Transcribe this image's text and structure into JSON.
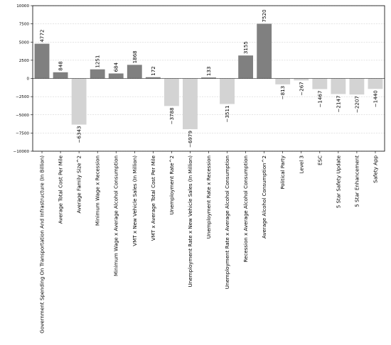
{
  "chart_data": {
    "type": "bar",
    "title": "",
    "xlabel": "",
    "ylabel": "",
    "ylim": [
      -10000,
      10000
    ],
    "yticks": [
      10000,
      7500,
      5000,
      2500,
      0,
      -2500,
      -5000,
      -7500,
      -10000
    ],
    "ytick_labels": [
      "10000",
      "7500",
      "5000",
      "2500",
      "0",
      "−2500",
      "−5000",
      "−7500",
      "−10000"
    ],
    "grid": "horizontal",
    "categories": [
      "Government Spending On Transportation And Infrastructure (In Billion)",
      "Average Total Cost Per Mile",
      "Average Family Size^2",
      "Minimum Wage x Recession",
      "Minimum Wage x Average Alcohol Consumption",
      "VMT x New Vehicle Sales (In Million)",
      "VMT x Average Total Cost Per Mile",
      "Unemployment Rate^2",
      "Unemployment Rate x New Vehicle Sales (In Million)",
      "Unemployment Rate x Recession",
      "Unemployment Rate x Average Alcohol Consumption",
      "Recession x Average Alcohol Consumption",
      "Average Alcohol Consumption^2",
      "Political Party",
      "Level 3",
      "ESC",
      "5 Star Safety Update",
      "5 Star Enhancement",
      "Safety App"
    ],
    "values": [
      4772,
      848,
      -6343,
      1251,
      684,
      1868,
      172,
      -3788,
      -6979,
      133,
      -3511,
      3155,
      7520,
      -813,
      -267,
      -1467,
      -2147,
      -2207,
      -1440
    ],
    "value_labels": [
      "4772",
      "848",
      "−6343",
      "1251",
      "684",
      "1868",
      "172",
      "−3788",
      "−6979",
      "133",
      "−3511",
      "3155",
      "7520",
      "−813",
      "−267",
      "−1467",
      "−2147",
      "−2207",
      "−1440"
    ],
    "colors": {
      "positive": "#808080",
      "negative": "#d3d3d3",
      "grid": "#c8c8c8",
      "axis": "#000000"
    }
  }
}
